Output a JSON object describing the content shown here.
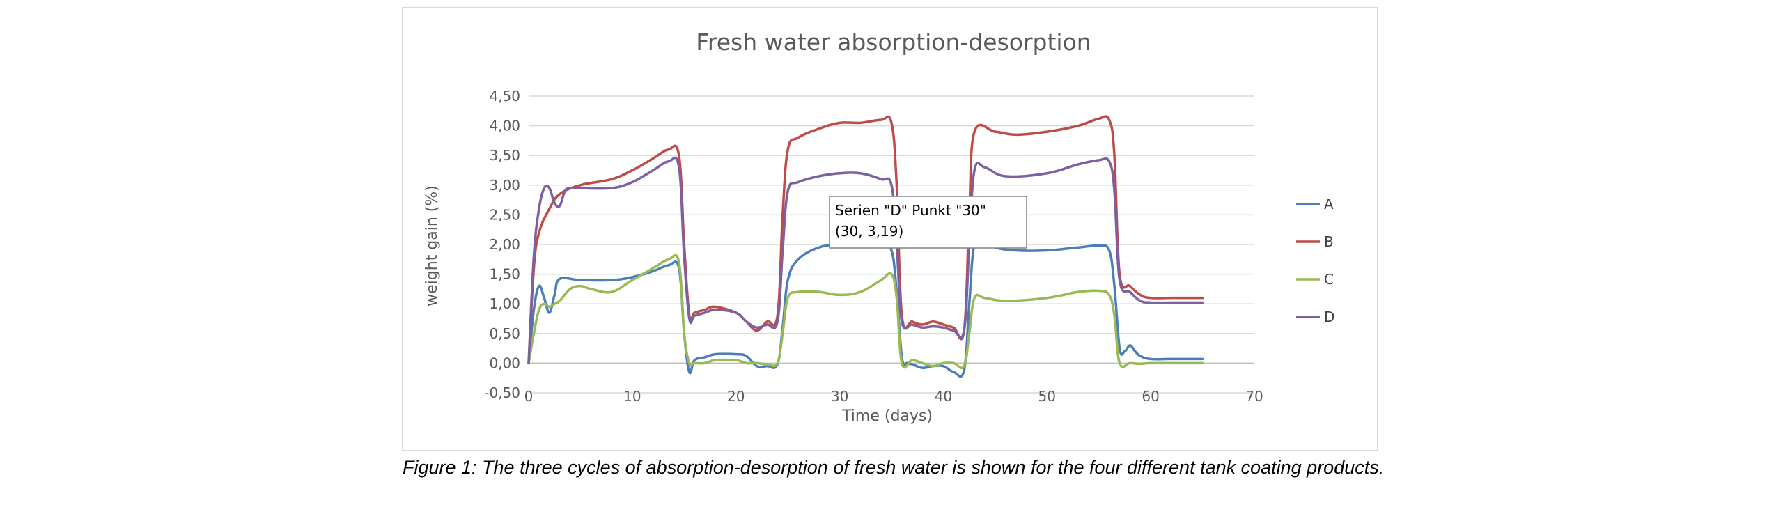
{
  "caption": "Figure 1: The three cycles of absorption-desorption of fresh water is shown for the four different tank coating products.",
  "chart_data": {
    "type": "line",
    "title": "Fresh water absorption-desorption",
    "xlabel": "Time (days)",
    "ylabel": "weight gain (%)",
    "xlim": [
      0,
      70
    ],
    "ylim": [
      -0.5,
      4.5
    ],
    "xticks": [
      0,
      10,
      20,
      30,
      40,
      50,
      60,
      70
    ],
    "xtick_labels": [
      "0",
      "10",
      "20",
      "30",
      "40",
      "50",
      "60",
      "70"
    ],
    "yticks": [
      -0.5,
      0,
      0.5,
      1,
      1.5,
      2,
      2.5,
      3,
      3.5,
      4,
      4.5
    ],
    "ytick_labels": [
      "-0,50",
      "0,00",
      "0,50",
      "1,00",
      "1,50",
      "2,00",
      "2,50",
      "3,00",
      "3,50",
      "4,00",
      "4,50"
    ],
    "grid": true,
    "legend_position": "right",
    "series": [
      {
        "name": "A",
        "color": "#4a7ebb",
        "x": [
          0,
          0.5,
          1,
          1.5,
          2,
          2.5,
          3,
          5,
          8,
          10,
          12,
          13.5,
          14.5,
          15,
          15.5,
          16,
          17,
          18,
          20,
          21,
          22,
          23,
          24,
          24.5,
          25,
          26,
          28,
          30,
          32,
          34,
          35,
          35.5,
          36,
          36.5,
          37,
          38,
          39,
          40,
          41,
          42,
          42.5,
          43,
          44,
          45,
          47,
          50,
          53,
          55,
          56,
          56.5,
          57,
          57.5,
          58,
          58.5,
          59,
          60,
          62,
          65
        ],
        "y": [
          0,
          0.9,
          1.3,
          1.1,
          0.85,
          1.15,
          1.42,
          1.4,
          1.4,
          1.45,
          1.55,
          1.65,
          1.6,
          0.5,
          -0.15,
          0.05,
          0.1,
          0.15,
          0.15,
          0.12,
          -0.05,
          -0.05,
          -0.02,
          0.6,
          1.4,
          1.75,
          1.95,
          2.0,
          2.0,
          2.0,
          1.9,
          1.2,
          0.1,
          0.0,
          -0.02,
          -0.08,
          -0.05,
          -0.05,
          -0.15,
          -0.12,
          1.0,
          2.0,
          2.05,
          1.95,
          1.9,
          1.9,
          1.95,
          1.98,
          1.9,
          1.3,
          0.25,
          0.2,
          0.3,
          0.2,
          0.12,
          0.07,
          0.07,
          0.07
        ]
      },
      {
        "name": "B",
        "color": "#be4b48",
        "x": [
          0,
          0.5,
          1,
          2,
          3,
          5,
          8,
          10,
          12,
          13.5,
          14.5,
          15,
          15.5,
          16,
          17,
          18,
          20,
          21,
          22,
          23,
          24,
          24.5,
          25,
          26,
          28,
          30,
          32,
          34,
          35,
          35.5,
          36,
          37,
          38,
          39,
          40,
          41,
          42,
          42.5,
          43,
          45,
          47,
          50,
          53,
          55,
          56,
          56.5,
          57,
          58,
          59,
          60,
          62,
          65
        ],
        "y": [
          0,
          1.6,
          2.2,
          2.6,
          2.85,
          3.0,
          3.1,
          3.25,
          3.45,
          3.6,
          3.5,
          2.0,
          0.8,
          0.85,
          0.9,
          0.95,
          0.85,
          0.7,
          0.55,
          0.7,
          0.8,
          2.5,
          3.6,
          3.8,
          3.95,
          4.05,
          4.05,
          4.1,
          4.05,
          3.0,
          0.8,
          0.7,
          0.65,
          0.7,
          0.65,
          0.6,
          0.55,
          2.5,
          3.9,
          3.9,
          3.85,
          3.9,
          4.0,
          4.12,
          4.1,
          3.5,
          1.5,
          1.3,
          1.15,
          1.1,
          1.1,
          1.1
        ]
      },
      {
        "name": "C",
        "color": "#98b954",
        "x": [
          0,
          0.5,
          1,
          1.5,
          2,
          2.5,
          3,
          4,
          5,
          6,
          8,
          10,
          12,
          13.5,
          14.5,
          15,
          15.5,
          16,
          17,
          18,
          20,
          21,
          22,
          23,
          24,
          24.5,
          25,
          26,
          28,
          30,
          32,
          34,
          35,
          35.5,
          36,
          37,
          38,
          39,
          40,
          41,
          42,
          42.5,
          43,
          44,
          46,
          50,
          53,
          55,
          56,
          56.5,
          57,
          58,
          59,
          60,
          62,
          65
        ],
        "y": [
          0,
          0.5,
          0.9,
          1.0,
          0.95,
          1.0,
          1.05,
          1.25,
          1.3,
          1.25,
          1.2,
          1.4,
          1.6,
          1.75,
          1.7,
          0.5,
          0.0,
          0.0,
          0.0,
          0.05,
          0.05,
          0.0,
          0.0,
          -0.02,
          0.0,
          0.5,
          1.1,
          1.2,
          1.2,
          1.15,
          1.2,
          1.4,
          1.5,
          1.1,
          0.0,
          0.05,
          0.0,
          -0.05,
          0.0,
          0.0,
          -0.05,
          0.5,
          1.1,
          1.1,
          1.05,
          1.1,
          1.2,
          1.22,
          1.15,
          0.8,
          0.0,
          0.0,
          -0.01,
          0.0,
          0.0,
          0.0
        ]
      },
      {
        "name": "D",
        "color": "#7d60a0",
        "x": [
          0,
          0.5,
          1,
          1.5,
          2,
          2.5,
          3,
          3.5,
          4,
          5,
          8,
          10,
          12,
          13.5,
          14.5,
          15,
          15.5,
          16,
          17,
          18,
          20,
          21,
          22,
          23,
          24,
          24.5,
          25,
          26,
          28,
          30,
          32,
          34,
          35,
          35.5,
          36,
          37,
          38,
          39,
          40,
          41,
          42,
          42.5,
          43,
          44,
          46,
          50,
          53,
          55,
          56,
          56.5,
          57,
          58,
          59,
          60,
          62,
          65
        ],
        "y": [
          0,
          1.8,
          2.6,
          2.95,
          2.95,
          2.7,
          2.65,
          2.9,
          2.95,
          2.95,
          2.95,
          3.05,
          3.25,
          3.4,
          3.3,
          1.8,
          0.75,
          0.8,
          0.85,
          0.9,
          0.85,
          0.7,
          0.6,
          0.65,
          0.7,
          1.9,
          2.9,
          3.05,
          3.15,
          3.2,
          3.2,
          3.1,
          3.0,
          2.0,
          0.7,
          0.65,
          0.6,
          0.62,
          0.6,
          0.55,
          0.55,
          2.0,
          3.25,
          3.3,
          3.15,
          3.2,
          3.35,
          3.42,
          3.4,
          2.9,
          1.4,
          1.2,
          1.05,
          1.02,
          1.02,
          1.02
        ]
      }
    ],
    "tooltip": {
      "line1": "Serien \"D\" Punkt \"30\"",
      "line2": "(30, 3,19)"
    }
  }
}
